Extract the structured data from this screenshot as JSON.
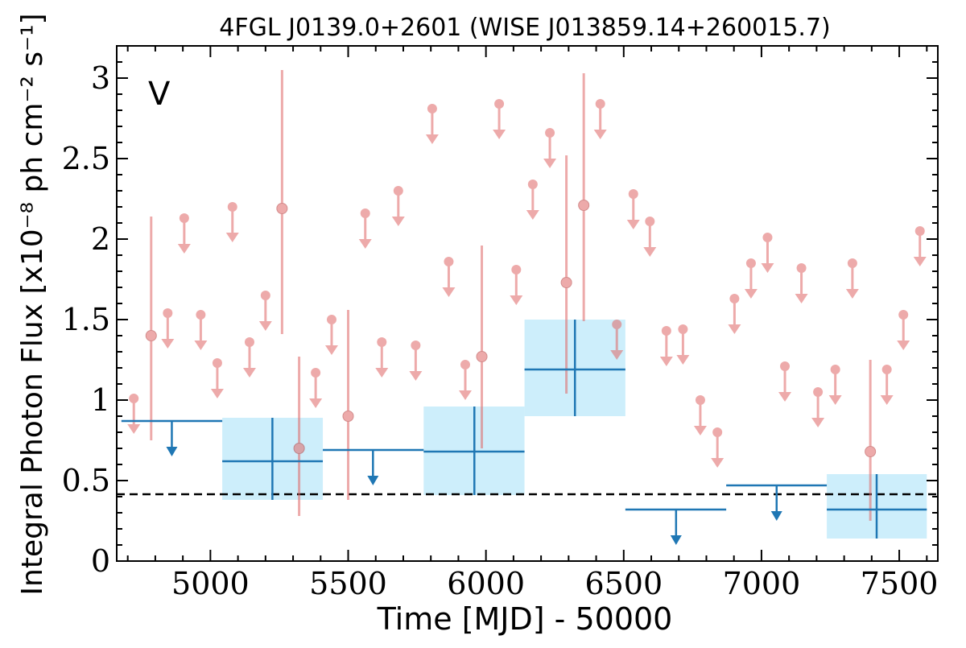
{
  "chart_data": {
    "type": "scatter",
    "title": "4FGL J0139.0+2601 (WISE J013859.14+260015.7)",
    "xlabel": "Time [MJD] - 50000",
    "ylabel": "Integral Photon Flux [x10⁻⁸ ph cm⁻² s⁻¹]",
    "panel_label": "V",
    "xlim": [
      4660,
      7640
    ],
    "ylim": [
      0,
      3.2
    ],
    "x_ticks": [
      5000,
      5500,
      6000,
      6500,
      7000,
      7500
    ],
    "x_tick_labels": [
      "5000",
      "5500",
      "6000",
      "6500",
      "7000",
      "7500"
    ],
    "y_ticks": [
      0,
      0.5,
      1,
      1.5,
      2,
      2.5,
      3
    ],
    "y_tick_labels": [
      "0",
      "0.5",
      "1",
      "1.5",
      "2",
      "2.5",
      "3"
    ],
    "reference_line": {
      "y": 0.415,
      "style": "dashed",
      "color": "#000000"
    },
    "colors": {
      "fine_bin": "#e06666",
      "coarse_bin": "#1f77b4",
      "coarse_fill": "#cdeefb",
      "panel_label": "#1f77b4"
    },
    "series": [
      {
        "bin_width_days": 60,
        "detections": [
          {
            "x": 4785,
            "y": 1.4,
            "ylo": 0.75,
            "yhi": 2.14
          },
          {
            "x": 5260,
            "y": 2.19,
            "ylo": 1.41,
            "yhi": 3.05
          },
          {
            "x": 5322,
            "y": 0.7,
            "ylo": 0.28,
            "yhi": 1.27
          },
          {
            "x": 5500,
            "y": 0.9,
            "ylo": 0.38,
            "yhi": 1.56
          },
          {
            "x": 5985,
            "y": 1.27,
            "ylo": 0.7,
            "yhi": 1.96
          },
          {
            "x": 6292,
            "y": 1.73,
            "ylo": 1.04,
            "yhi": 2.52
          },
          {
            "x": 6355,
            "y": 2.21,
            "ylo": 1.49,
            "yhi": 3.03
          },
          {
            "x": 7395,
            "y": 0.68,
            "ylo": 0.25,
            "yhi": 1.25
          }
        ],
        "upper_limits": [
          {
            "x": 4722,
            "y": 1.01
          },
          {
            "x": 4845,
            "y": 1.54
          },
          {
            "x": 4905,
            "y": 2.13
          },
          {
            "x": 4965,
            "y": 1.53
          },
          {
            "x": 5025,
            "y": 1.23
          },
          {
            "x": 5080,
            "y": 2.2
          },
          {
            "x": 5142,
            "y": 1.36
          },
          {
            "x": 5200,
            "y": 1.65
          },
          {
            "x": 5382,
            "y": 1.17
          },
          {
            "x": 5440,
            "y": 1.5
          },
          {
            "x": 5562,
            "y": 2.16
          },
          {
            "x": 5622,
            "y": 1.36
          },
          {
            "x": 5682,
            "y": 2.3
          },
          {
            "x": 5745,
            "y": 1.34
          },
          {
            "x": 5805,
            "y": 2.81
          },
          {
            "x": 5865,
            "y": 1.86
          },
          {
            "x": 5925,
            "y": 1.22
          },
          {
            "x": 6048,
            "y": 2.84
          },
          {
            "x": 6110,
            "y": 1.81
          },
          {
            "x": 6170,
            "y": 2.34
          },
          {
            "x": 6232,
            "y": 2.66
          },
          {
            "x": 6415,
            "y": 2.84
          },
          {
            "x": 6475,
            "y": 1.47
          },
          {
            "x": 6535,
            "y": 2.28
          },
          {
            "x": 6595,
            "y": 2.11
          },
          {
            "x": 6655,
            "y": 1.43
          },
          {
            "x": 6715,
            "y": 1.44
          },
          {
            "x": 6778,
            "y": 1.0
          },
          {
            "x": 6840,
            "y": 0.8
          },
          {
            "x": 6902,
            "y": 1.63
          },
          {
            "x": 6962,
            "y": 1.85
          },
          {
            "x": 7022,
            "y": 2.01
          },
          {
            "x": 7085,
            "y": 1.21
          },
          {
            "x": 7145,
            "y": 1.82
          },
          {
            "x": 7205,
            "y": 1.05
          },
          {
            "x": 7268,
            "y": 1.19
          },
          {
            "x": 7330,
            "y": 1.85
          },
          {
            "x": 7455,
            "y": 1.19
          },
          {
            "x": 7515,
            "y": 1.53
          },
          {
            "x": 7575,
            "y": 2.05
          }
        ]
      },
      {
        "bin_width_days": 365,
        "detections": [
          {
            "x": 5225,
            "xlo": 5043,
            "xhi": 5408,
            "y": 0.62,
            "ylo": 0.38,
            "yhi": 0.89
          },
          {
            "x": 5958,
            "xlo": 5774,
            "xhi": 6140,
            "y": 0.68,
            "ylo": 0.41,
            "yhi": 0.96
          },
          {
            "x": 6323,
            "xlo": 6140,
            "xhi": 6506,
            "y": 1.19,
            "ylo": 0.9,
            "yhi": 1.5
          },
          {
            "x": 7418,
            "xlo": 7237,
            "xhi": 7600,
            "y": 0.32,
            "ylo": 0.14,
            "yhi": 0.54
          }
        ],
        "upper_limits": [
          {
            "x": 4860,
            "xlo": 4677,
            "xhi": 5043,
            "y": 0.87
          },
          {
            "x": 5590,
            "xlo": 5408,
            "xhi": 5774,
            "y": 0.69
          },
          {
            "x": 6690,
            "xlo": 6506,
            "xhi": 6872,
            "y": 0.32
          },
          {
            "x": 7055,
            "xlo": 6872,
            "xhi": 7237,
            "y": 0.47
          }
        ]
      }
    ]
  }
}
